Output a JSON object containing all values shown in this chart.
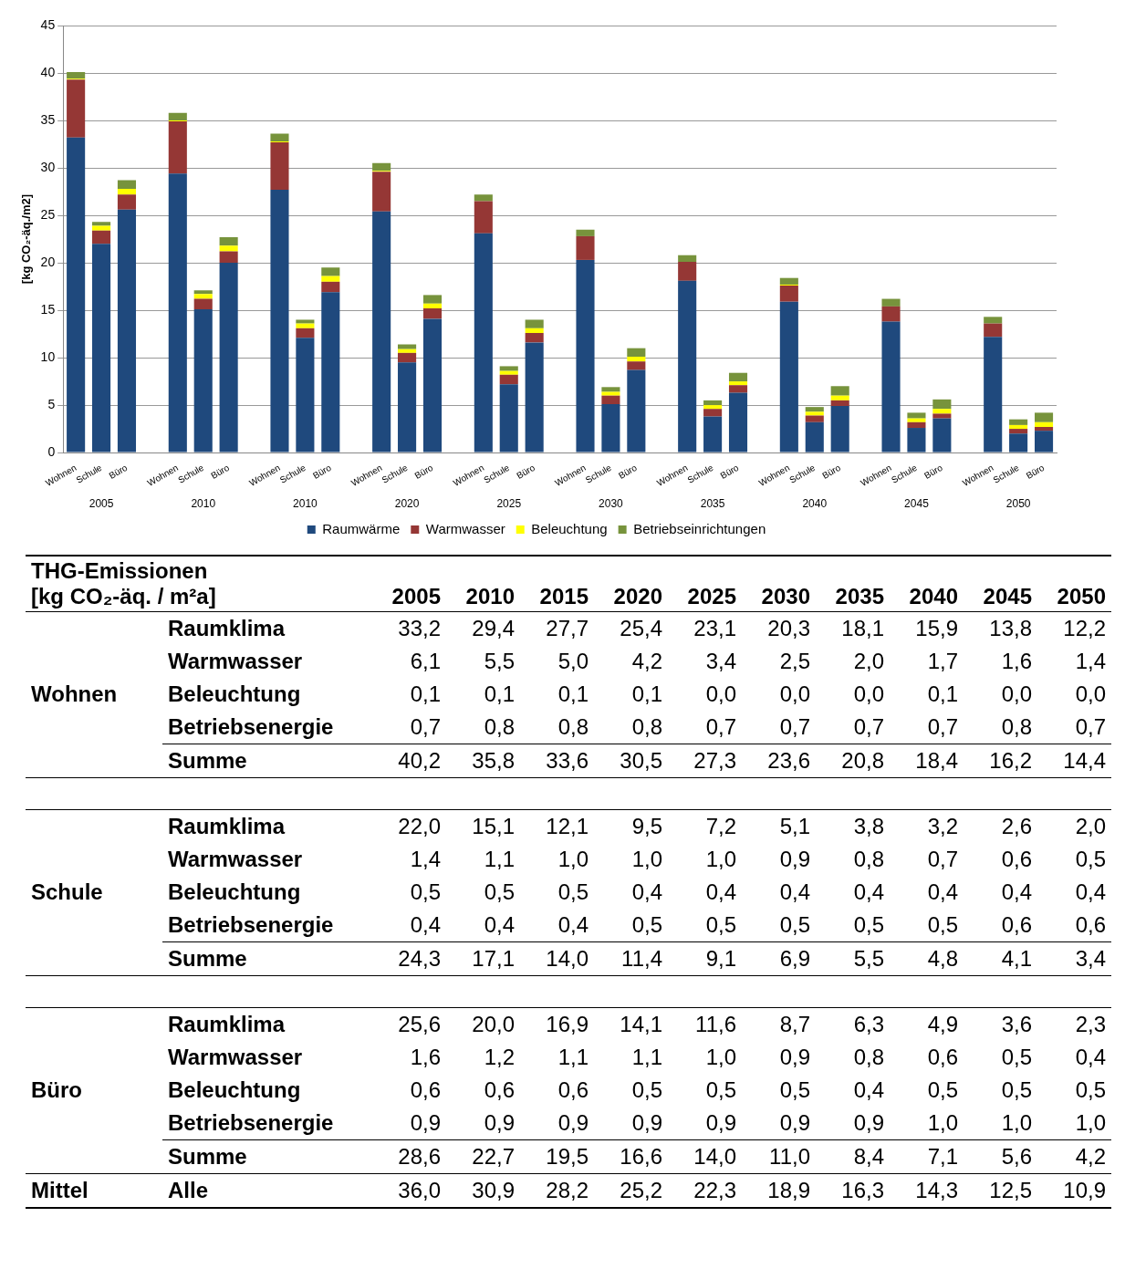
{
  "chart_data": [
    {
      "type": "bar",
      "stacked": true,
      "ylabel": "[kg CO₂-äq./m2]",
      "ylim": [
        0,
        45
      ],
      "yticks": [
        0,
        5,
        10,
        15,
        20,
        25,
        30,
        35,
        40,
        45
      ],
      "grid": "y",
      "legend": "bottom",
      "categories": [
        "Wohnen",
        "Schule",
        "Büro",
        null,
        "Wohnen",
        "Schule",
        "Büro",
        null,
        "Wohnen",
        "Schule",
        "Büro",
        null,
        "Wohnen",
        "Schule",
        "Büro",
        null,
        "Wohnen",
        "Schule",
        "Büro",
        null,
        "Wohnen",
        "Schule",
        "Büro",
        null,
        "Wohnen",
        "Schule",
        "Büro",
        null,
        "Wohnen",
        "Schule",
        "Büro",
        null,
        "Wohnen",
        "Schule",
        "Büro",
        null,
        "Wohnen",
        "Schule",
        "Büro"
      ],
      "annotations": [
        "2005",
        "2010",
        "2010",
        "2020",
        "2025",
        "2030",
        "2035",
        "2040",
        "2045",
        "2050"
      ],
      "series": [
        {
          "name": "Raumwärme",
          "color": "#1f497d",
          "values": [
            33.2,
            22.0,
            25.6,
            null,
            29.4,
            15.1,
            20.0,
            null,
            27.7,
            12.1,
            16.9,
            null,
            25.4,
            9.5,
            14.1,
            null,
            23.1,
            7.2,
            11.6,
            null,
            20.3,
            5.1,
            8.7,
            null,
            18.1,
            3.8,
            6.3,
            null,
            15.9,
            3.2,
            4.9,
            null,
            13.8,
            2.6,
            3.6,
            null,
            12.2,
            2.0,
            2.3
          ]
        },
        {
          "name": "Warmwasser",
          "color": "#953735",
          "values": [
            6.1,
            1.4,
            1.6,
            null,
            5.5,
            1.1,
            1.2,
            null,
            5.0,
            1.0,
            1.1,
            null,
            4.2,
            1.0,
            1.1,
            null,
            3.4,
            1.0,
            1.0,
            null,
            2.5,
            0.9,
            0.9,
            null,
            2.0,
            0.8,
            0.8,
            null,
            1.7,
            0.7,
            0.6,
            null,
            1.6,
            0.6,
            0.5,
            null,
            1.4,
            0.5,
            0.4
          ]
        },
        {
          "name": "Beleuchtung",
          "color": "#ffff00",
          "values": [
            0.1,
            0.5,
            0.6,
            null,
            0.1,
            0.5,
            0.6,
            null,
            0.1,
            0.5,
            0.6,
            null,
            0.1,
            0.4,
            0.5,
            null,
            0.0,
            0.4,
            0.5,
            null,
            0.0,
            0.4,
            0.5,
            null,
            0.0,
            0.4,
            0.4,
            null,
            0.1,
            0.4,
            0.5,
            null,
            0.0,
            0.4,
            0.5,
            null,
            0.0,
            0.4,
            0.5
          ]
        },
        {
          "name": "Betriebseinrichtungen",
          "color": "#77933c",
          "values": [
            0.7,
            0.4,
            0.9,
            null,
            0.8,
            0.4,
            0.9,
            null,
            0.8,
            0.4,
            0.9,
            null,
            0.8,
            0.5,
            0.9,
            null,
            0.7,
            0.5,
            0.9,
            null,
            0.7,
            0.5,
            0.9,
            null,
            0.7,
            0.5,
            0.9,
            null,
            0.7,
            0.5,
            1.0,
            null,
            0.8,
            0.6,
            1.0,
            null,
            0.7,
            0.6,
            1.0
          ]
        }
      ]
    },
    {
      "type": "heatmap",
      "title": "THG-Emissionen",
      "subtitle": "[kg CO₂-äq. / m²a]",
      "ylabel": "Wohnen",
      "categories": [
        "2005",
        "2010",
        "2015",
        "2020",
        "2025",
        "2030",
        "2035",
        "2040",
        "2045",
        "2050"
      ],
      "y_categories": [
        "Raumklima",
        "Warmwasser",
        "Beleuchtung",
        "Betriebsenergie",
        "Summe"
      ],
      "cells": [
        [
          33.2,
          29.4,
          27.7,
          25.4,
          23.1,
          20.3,
          18.1,
          15.9,
          13.8,
          12.2
        ],
        [
          6.1,
          5.5,
          5.0,
          4.2,
          3.4,
          2.5,
          2.0,
          1.7,
          1.6,
          1.4
        ],
        [
          0.1,
          0.1,
          0.1,
          0.1,
          0.0,
          0.0,
          0.0,
          0.1,
          0.0,
          0.0
        ],
        [
          0.7,
          0.8,
          0.8,
          0.8,
          0.7,
          0.7,
          0.7,
          0.7,
          0.8,
          0.7
        ],
        [
          40.2,
          35.8,
          33.6,
          30.5,
          27.3,
          23.6,
          20.8,
          18.4,
          16.2,
          14.4
        ]
      ],
      "cell_labels": [
        [
          "33,2",
          "29,4",
          "27,7",
          "25,4",
          "23,1",
          "20,3",
          "18,1",
          "15,9",
          "13,8",
          "12,2"
        ],
        [
          "6,1",
          "5,5",
          "5,0",
          "4,2",
          "3,4",
          "2,5",
          "2,0",
          "1,7",
          "1,6",
          "1,4"
        ],
        [
          "0,1",
          "0,1",
          "0,1",
          "0,1",
          "0,0",
          "0,0",
          "0,0",
          "0,1",
          "0,0",
          "0,0"
        ],
        [
          "0,7",
          "0,8",
          "0,8",
          "0,8",
          "0,7",
          "0,7",
          "0,7",
          "0,7",
          "0,8",
          "0,7"
        ],
        [
          "40,2",
          "35,8",
          "33,6",
          "30,5",
          "27,3",
          "23,6",
          "20,8",
          "18,4",
          "16,2",
          "14,4"
        ]
      ]
    },
    {
      "type": "heatmap",
      "ylabel": "Schule",
      "tick_labels": "y",
      "categories": [
        "2005",
        "2010",
        "2015",
        "2020",
        "2025",
        "2030",
        "2035",
        "2040",
        "2045",
        "2050"
      ],
      "y_categories": [
        "Raumklima",
        "Warmwasser",
        "Beleuchtung",
        "Betriebsenergie",
        "Summe"
      ],
      "cells": [
        [
          22.0,
          15.1,
          12.1,
          9.5,
          7.2,
          5.1,
          3.8,
          3.2,
          2.6,
          2.0
        ],
        [
          1.4,
          1.1,
          1.0,
          1.0,
          1.0,
          0.9,
          0.8,
          0.7,
          0.6,
          0.5
        ],
        [
          0.5,
          0.5,
          0.5,
          0.4,
          0.4,
          0.4,
          0.4,
          0.4,
          0.4,
          0.4
        ],
        [
          0.4,
          0.4,
          0.4,
          0.5,
          0.5,
          0.5,
          0.5,
          0.5,
          0.6,
          0.6
        ],
        [
          24.3,
          17.1,
          14.0,
          11.4,
          9.1,
          6.9,
          5.5,
          4.8,
          4.1,
          3.4
        ]
      ],
      "cell_labels": [
        [
          "22,0",
          "15,1",
          "12,1",
          "9,5",
          "7,2",
          "5,1",
          "3,8",
          "3,2",
          "2,6",
          "2,0"
        ],
        [
          "1,4",
          "1,1",
          "1,0",
          "1,0",
          "1,0",
          "0,9",
          "0,8",
          "0,7",
          "0,6",
          "0,5"
        ],
        [
          "0,5",
          "0,5",
          "0,5",
          "0,4",
          "0,4",
          "0,4",
          "0,4",
          "0,4",
          "0,4",
          "0,4"
        ],
        [
          "0,4",
          "0,4",
          "0,4",
          "0,5",
          "0,5",
          "0,5",
          "0,5",
          "0,5",
          "0,6",
          "0,6"
        ],
        [
          "24,3",
          "17,1",
          "14,0",
          "11,4",
          "9,1",
          "6,9",
          "5,5",
          "4,8",
          "4,1",
          "3,4"
        ]
      ]
    },
    {
      "type": "heatmap",
      "ylabel": "Büro",
      "tick_labels": "y",
      "categories": [
        "2005",
        "2010",
        "2015",
        "2020",
        "2025",
        "2030",
        "2035",
        "2040",
        "2045",
        "2050"
      ],
      "y_categories": [
        "Raumklima",
        "Warmwasser",
        "Beleuchtung",
        "Betriebsenergie",
        "Summe",
        "Alle"
      ],
      "y2_categories": [
        null,
        null,
        null,
        null,
        null,
        "Mittel"
      ],
      "cells": [
        [
          25.6,
          20.0,
          16.9,
          14.1,
          11.6,
          8.7,
          6.3,
          4.9,
          3.6,
          2.3
        ],
        [
          1.6,
          1.2,
          1.1,
          1.1,
          1.0,
          0.9,
          0.8,
          0.6,
          0.5,
          0.4
        ],
        [
          0.6,
          0.6,
          0.6,
          0.5,
          0.5,
          0.5,
          0.4,
          0.5,
          0.5,
          0.5
        ],
        [
          0.9,
          0.9,
          0.9,
          0.9,
          0.9,
          0.9,
          0.9,
          1.0,
          1.0,
          1.0
        ],
        [
          28.6,
          22.7,
          19.5,
          16.6,
          14.0,
          11.0,
          8.4,
          7.1,
          5.6,
          4.2
        ],
        [
          36.0,
          30.9,
          28.2,
          25.2,
          22.3,
          18.9,
          16.3,
          14.3,
          12.5,
          10.9
        ]
      ],
      "cell_labels": [
        [
          "25,6",
          "20,0",
          "16,9",
          "14,1",
          "11,6",
          "8,7",
          "6,3",
          "4,9",
          "3,6",
          "2,3"
        ],
        [
          "1,6",
          "1,2",
          "1,1",
          "1,1",
          "1,0",
          "0,9",
          "0,8",
          "0,6",
          "0,5",
          "0,4"
        ],
        [
          "0,6",
          "0,6",
          "0,6",
          "0,5",
          "0,5",
          "0,5",
          "0,4",
          "0,5",
          "0,5",
          "0,5"
        ],
        [
          "0,9",
          "0,9",
          "0,9",
          "0,9",
          "0,9",
          "0,9",
          "0,9",
          "1,0",
          "1,0",
          "1,0"
        ],
        [
          "28,6",
          "22,7",
          "19,5",
          "16,6",
          "14,0",
          "11,0",
          "8,4",
          "7,1",
          "5,6",
          "4,2"
        ],
        [
          "36,0",
          "30,9",
          "28,2",
          "25,2",
          "22,3",
          "18,9",
          "16,3",
          "14,3",
          "12,5",
          "10,9"
        ]
      ]
    }
  ]
}
